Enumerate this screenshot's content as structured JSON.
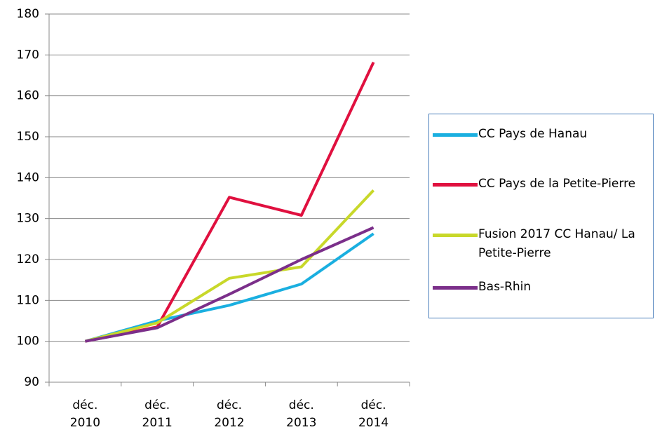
{
  "chart_data": {
    "type": "line",
    "categories": [
      "déc. 2010",
      "déc. 2011",
      "déc. 2012",
      "déc. 2013",
      "déc. 2014"
    ],
    "series": [
      {
        "name": "CC Pays de Hanau",
        "color": "#1aafe0",
        "values": [
          100,
          105,
          108.8,
          114,
          126.3
        ]
      },
      {
        "name": "CC Pays de la Petite-Pierre",
        "color": "#e0103f",
        "values": [
          100,
          103.5,
          135.2,
          130.8,
          168.2
        ]
      },
      {
        "name": "Fusion 2017 CC Hanau/ La Petite-Pierre",
        "color": "#c8d82a",
        "values": [
          100,
          104.5,
          115.4,
          118.2,
          136.9
        ]
      },
      {
        "name": "Bas-Rhin",
        "color": "#7b2f8a",
        "values": [
          100,
          103.3,
          111.5,
          120,
          127.8
        ]
      }
    ],
    "ylim": [
      90,
      180
    ],
    "yticks": [
      90,
      100,
      110,
      120,
      130,
      140,
      150,
      160,
      170,
      180
    ],
    "grid": true,
    "legend": "right"
  }
}
